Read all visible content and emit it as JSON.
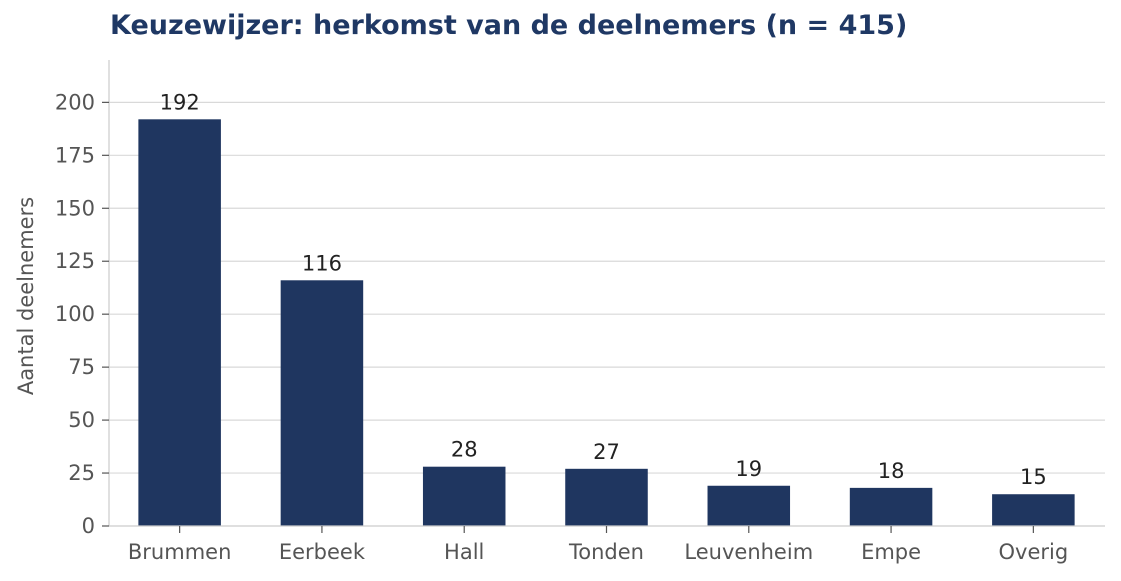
{
  "chart_data": {
    "type": "bar",
    "title": "Keuzewijzer: herkomst van de deelnemers (n = 415)",
    "xlabel": "",
    "ylabel": "Aantal deelnemers",
    "categories": [
      "Brummen",
      "Eerbeek",
      "Hall",
      "Tonden",
      "Leuvenheim",
      "Empe",
      "Overig"
    ],
    "values": [
      192,
      116,
      28,
      27,
      19,
      18,
      15
    ],
    "ylim": [
      0,
      220
    ],
    "yticks": [
      0,
      25,
      50,
      75,
      100,
      125,
      150,
      175,
      200
    ],
    "grid": true,
    "grid_axis": "y",
    "legend": false,
    "data_labels": true,
    "bar_color": "#1f3660",
    "title_color": "#1f3864",
    "grid_color": "#d9d9d9",
    "axis_color": "#cccccc"
  }
}
